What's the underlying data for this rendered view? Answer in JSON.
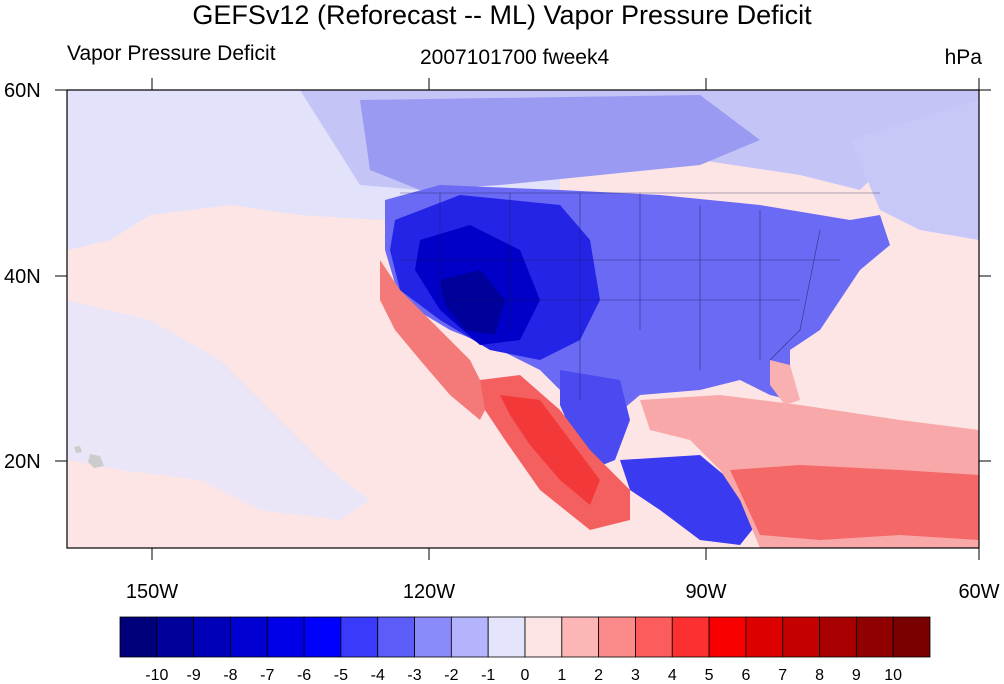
{
  "title": "GEFSv12 (Reforecast -- ML) Vapor Pressure Deficit",
  "left_string": "Vapor Pressure Deficit",
  "center_string": "2007101700 fweek4",
  "right_string": "hPa",
  "lat_labels": [
    "60N",
    "40N",
    "20N"
  ],
  "lon_labels": [
    "150W",
    "120W",
    "90W",
    "60W"
  ],
  "colorbar": {
    "labels": [
      "-10",
      "-9",
      "-8",
      "-7",
      "-6",
      "-5",
      "-4",
      "-3",
      "-2",
      "-1",
      "0",
      "1",
      "2",
      "3",
      "4",
      "5",
      "6",
      "7",
      "8",
      "9",
      "10"
    ],
    "colors": [
      "#00007a",
      "#00009a",
      "#0000b8",
      "#0000d2",
      "#0000e8",
      "#0000ff",
      "#3a3afc",
      "#5c5cf8",
      "#8a8afa",
      "#b4b4fc",
      "#e4e4fc",
      "#fde4e4",
      "#fcb6b6",
      "#fc8a8a",
      "#fc5c5c",
      "#fc3030",
      "#f80000",
      "#dc0000",
      "#c40000",
      "#a80000",
      "#900000",
      "#780000"
    ]
  },
  "colors": {
    "ocean_background": "#fde5e5",
    "land_cool": "#d8d8fb",
    "west_core": "#0000cc",
    "mexico_warm": "#f45050"
  }
}
